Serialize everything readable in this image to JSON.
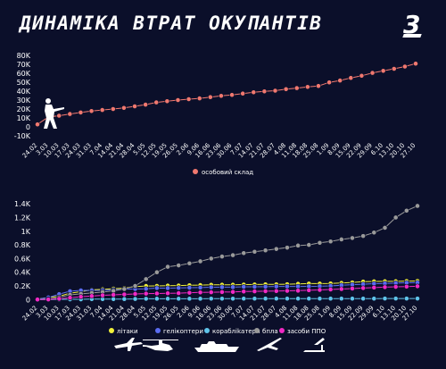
{
  "title": "ДИНАМІКА ВТРАТ ОКУПАНТІВ",
  "logo_text": "3",
  "colors": {
    "background": "#0b0f2a",
    "personnel": "#f0786f",
    "planes": "#f1f03a",
    "helicopters": "#5b6cf0",
    "ships": "#5fc4ea",
    "drones": "#9a9a9a",
    "air_defense": "#f029c4"
  },
  "chart_data": [
    {
      "type": "line",
      "title": "",
      "xlabel": "",
      "ylabel": "",
      "ylim": [
        -10000,
        80000
      ],
      "yticks": [
        -10000,
        0,
        10000,
        20000,
        30000,
        40000,
        50000,
        60000,
        70000,
        80000
      ],
      "ytick_labels": [
        "-10K",
        "0",
        "10K",
        "20K",
        "30K",
        "40K",
        "50K",
        "60K",
        "70K",
        "80K"
      ],
      "x_tick_labels": [
        "24.02",
        "3.03",
        "10.03",
        "17.03",
        "24.03",
        "31.03",
        "7.04",
        "14.04",
        "21.04",
        "28.04",
        "5.05",
        "12.05",
        "19.05",
        "26.05",
        "2.06",
        "9.06",
        "16.06",
        "23.06",
        "30.06",
        "7.07",
        "14.07",
        "21.07",
        "28.07",
        "4.08",
        "11.08",
        "18.08",
        "25.08",
        "1.09",
        "8.09",
        "15.09",
        "22.09",
        "29.09",
        "6.10",
        "13.10",
        "20.10",
        "27.10"
      ],
      "grid": false,
      "legend_position": "bottom-center",
      "series": [
        {
          "name": "особовий склад",
          "color": "#f0786f",
          "values": [
            2800,
            11000,
            12500,
            14400,
            16100,
            17700,
            18900,
            20000,
            21200,
            23000,
            24900,
            27400,
            28700,
            30000,
            31000,
            31900,
            33300,
            34700,
            35800,
            37300,
            38700,
            39700,
            40500,
            42200,
            43400,
            44700,
            45800,
            49800,
            51900,
            54800,
            57200,
            60400,
            62700,
            65000,
            67500,
            70800
          ]
        }
      ]
    },
    {
      "type": "line",
      "title": "",
      "xlabel": "",
      "ylabel": "",
      "ylim": [
        -100,
        1650
      ],
      "yticks": [
        0,
        200,
        400,
        600,
        800,
        1000,
        1200,
        1400
      ],
      "ytick_labels": [
        "0",
        "0.2K",
        "0.4K",
        "0.6K",
        "0.8K",
        "1K",
        "1.2K",
        "1.4K"
      ],
      "x_tick_labels": [
        "24.02",
        "3.03",
        "10.03",
        "17.03",
        "24.03",
        "31.03",
        "7.04",
        "14.04",
        "21.04",
        "28.04",
        "5.05",
        "12.05",
        "19.05",
        "26.05",
        "2.06",
        "9.06",
        "16.06",
        "23.06",
        "30.06",
        "7.07",
        "14.07",
        "21.07",
        "28.07",
        "4.08",
        "11.08",
        "18.08",
        "25.08",
        "1.09",
        "8.09",
        "15.09",
        "22.09",
        "29.09",
        "6.10",
        "13.10",
        "20.10",
        "27.10"
      ],
      "grid": false,
      "legend_position": "bottom-center",
      "series": [
        {
          "name": "літаки",
          "color": "#f1f03a",
          "values": [
            7,
            30,
            49,
            95,
            115,
            143,
            150,
            160,
            167,
            190,
            199,
            200,
            204,
            206,
            210,
            212,
            216,
            217,
            217,
            220,
            221,
            223,
            223,
            225,
            230,
            234,
            234,
            236,
            243,
            251,
            263,
            266,
            268,
            268,
            271,
            272
          ]
        },
        {
          "name": "гелікоптери",
          "color": "#5b6cf0",
          "values": [
            6,
            31,
            80,
            123,
            135,
            134,
            135,
            143,
            153,
            155,
            158,
            169,
            168,
            171,
            174,
            176,
            180,
            182,
            183,
            188,
            188,
            189,
            192,
            192,
            192,
            194,
            195,
            200,
            210,
            219,
            225,
            233,
            236,
            241,
            246,
            248
          ]
        },
        {
          "name": "корабліkатери",
          "color": "#5fc4ea",
          "values": [
            0,
            2,
            3,
            4,
            4,
            7,
            7,
            7,
            8,
            10,
            12,
            13,
            13,
            13,
            13,
            13,
            14,
            14,
            14,
            15,
            15,
            15,
            15,
            15,
            15,
            15,
            15,
            15,
            15,
            15,
            15,
            15,
            16,
            16,
            16,
            16
          ]
        },
        {
          "name": "бпла",
          "color": "#9a9a9a",
          "values": [
            2,
            7,
            33,
            70,
            84,
            97,
            110,
            128,
            155,
            200,
            300,
            400,
            480,
            500,
            530,
            560,
            600,
            630,
            650,
            680,
            700,
            720,
            740,
            760,
            790,
            800,
            830,
            850,
            880,
            900,
            930,
            980,
            1050,
            1200,
            1300,
            1370
          ]
        },
        {
          "name": "засоби ППО",
          "color": "#f029c4",
          "values": [
            2,
            3,
            12,
            28,
            42,
            52,
            63,
            70,
            76,
            83,
            87,
            90,
            93,
            95,
            100,
            105,
            108,
            110,
            113,
            118,
            121,
            123,
            125,
            128,
            131,
            137,
            142,
            148,
            155,
            162,
            169,
            176,
            182,
            187,
            190,
            195
          ]
        }
      ]
    }
  ],
  "legend_top": {
    "items": [
      {
        "label": "особовий склад",
        "color": "#f0786f"
      }
    ]
  },
  "legend_bottom": {
    "items": [
      {
        "label": "літаки",
        "color": "#f1f03a",
        "icon": "plane-icon"
      },
      {
        "label": "гелікоптери",
        "color": "#5b6cf0",
        "icon": "helicopter-icon"
      },
      {
        "label": "корабліkатери",
        "color": "#5fc4ea",
        "icon": "ship-icon"
      },
      {
        "label": "бпла",
        "color": "#9a9a9a",
        "icon": "drone-icon"
      },
      {
        "label": "засоби ППО",
        "color": "#f029c4",
        "icon": "air-defense-icon"
      }
    ]
  }
}
